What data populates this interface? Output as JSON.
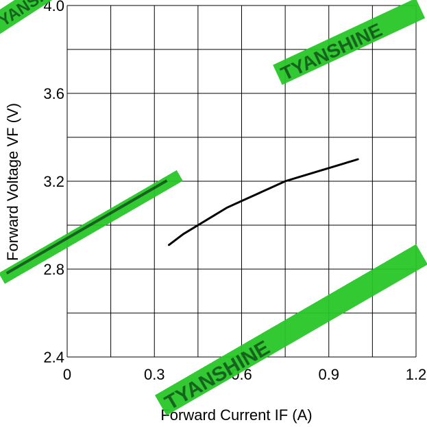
{
  "chart_data": {
    "type": "line",
    "title": "",
    "xlabel": "Forward Current IF  (A)",
    "ylabel": "Forward  Voltage  VF  (V)",
    "xlim": [
      0,
      1.2
    ],
    "ylim": [
      2.4,
      4.0
    ],
    "x_ticks": [
      "0",
      "0.3",
      "0.6",
      "0.9",
      "1.2"
    ],
    "y_ticks": [
      "2.4",
      "2.8",
      "3.2",
      "3.6",
      "4.0"
    ],
    "x_grid_step": 0.15,
    "y_grid_step": 0.2,
    "grid": true,
    "series": [
      {
        "x": [
          0.35,
          0.4,
          0.45,
          0.5,
          0.55,
          0.6,
          0.65,
          0.7,
          0.75,
          0.8,
          0.85,
          0.9,
          0.95,
          1.0
        ],
        "values": [
          2.91,
          2.96,
          3.0,
          3.04,
          3.08,
          3.11,
          3.14,
          3.17,
          3.2,
          3.22,
          3.24,
          3.26,
          3.28,
          3.3
        ]
      }
    ]
  },
  "watermark": {
    "text": "TYANSHINE",
    "color": "#27c727"
  }
}
